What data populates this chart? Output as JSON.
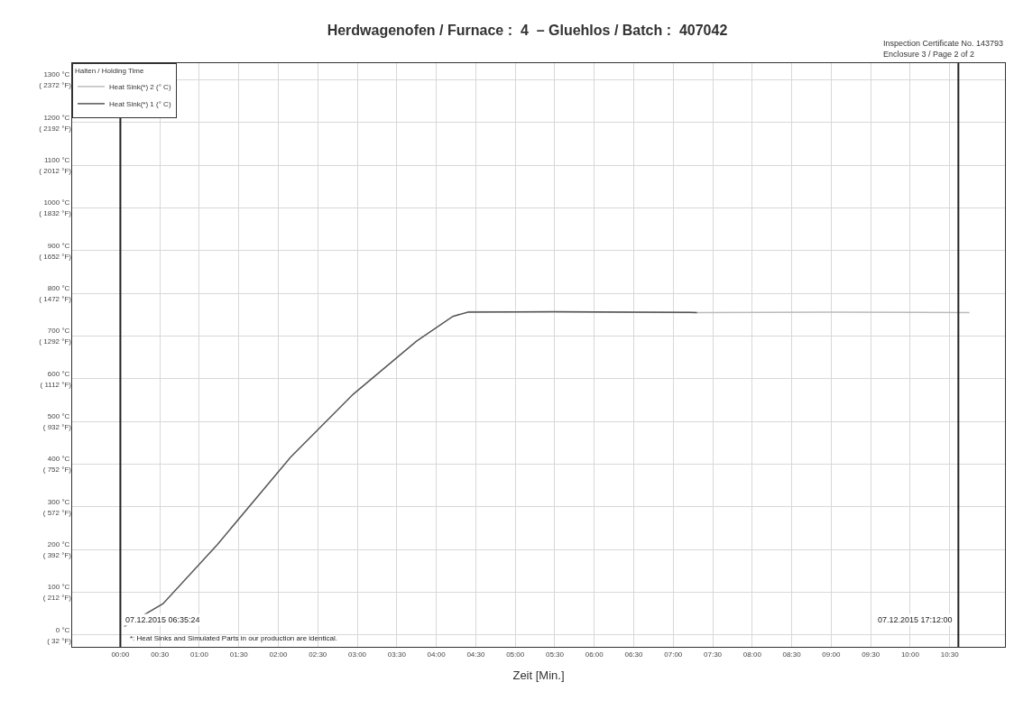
{
  "chart_data": {
    "type": "line",
    "title": "Herdwagenofen / Furnace :  4  – Gluehlos / Batch :  407042",
    "xlabel": "Zeit [Min.]",
    "legend_title": "Halten / Holding Time",
    "annotations": [
      "Inspection Certificate No. 143793\nEnclosure 3 / Page 2 of 2",
      "*: Heat Sinks and Simulated Parts in our production are identical.",
      {
        "text": "07.12.2015 06:35:24",
        "x": 0,
        "y": 20
      },
      {
        "text": "07.12.2015 17:12:00",
        "x": 10.61,
        "y": 20
      }
    ],
    "series": [
      {
        "name": "Heat Sink(*) 2 (° C)",
        "color": "#bbbbbb",
        "x": [
          4.4,
          7.3,
          9.0,
          10.75
        ],
        "values": [
          757,
          755,
          756,
          755
        ]
      },
      {
        "name": "Heat Sink(*) 1 (° C)",
        "color": "#555555",
        "x": [
          0.05,
          0.54,
          1.23,
          2.15,
          2.95,
          3.75,
          4.21,
          4.4,
          5.5,
          6.5,
          7.3
        ],
        "values": [
          20,
          73,
          212,
          415,
          564,
          688,
          746,
          756,
          757,
          756,
          755
        ]
      }
    ],
    "ref_lines": [
      {
        "axis": "x",
        "value": 0,
        "color": "#222222"
      },
      {
        "axis": "x",
        "value": 10.61,
        "color": "#222222"
      }
    ],
    "xlim": [
      -0.61,
      11.2
    ],
    "ylim": [
      -28,
      1339
    ],
    "y2lim": [
      -18.4,
      2442.2
    ],
    "xticks": [
      {
        "value": 0,
        "label": "00:00"
      },
      {
        "value": 0.5,
        "label": "00:30"
      },
      {
        "value": 1,
        "label": "01:00"
      },
      {
        "value": 1.5,
        "label": "01:30"
      },
      {
        "value": 2,
        "label": "02:00"
      },
      {
        "value": 2.5,
        "label": "02:30"
      },
      {
        "value": 3,
        "label": "03:00"
      },
      {
        "value": 3.5,
        "label": "03:30"
      },
      {
        "value": 4,
        "label": "04:00"
      },
      {
        "value": 4.5,
        "label": "04:30"
      },
      {
        "value": 5,
        "label": "05:00"
      },
      {
        "value": 5.5,
        "label": "05:30"
      },
      {
        "value": 6,
        "label": "06:00"
      },
      {
        "value": 6.5,
        "label": "06:30"
      },
      {
        "value": 7,
        "label": "07:00"
      },
      {
        "value": 7.5,
        "label": "07:30"
      },
      {
        "value": 8,
        "label": "08:00"
      },
      {
        "value": 8.5,
        "label": "08:30"
      },
      {
        "value": 9,
        "label": "09:00"
      },
      {
        "value": 9.5,
        "label": "09:30"
      },
      {
        "value": 10,
        "label": "10:00"
      },
      {
        "value": 10.5,
        "label": "10:30"
      }
    ],
    "yticks": [
      {
        "value": 0,
        "label": "0 °C"
      },
      {
        "value": 100,
        "label": "100 °C"
      },
      {
        "value": 200,
        "label": "200 °C"
      },
      {
        "value": 300,
        "label": "300 °C"
      },
      {
        "value": 400,
        "label": "400 °C"
      },
      {
        "value": 500,
        "label": "500 °C"
      },
      {
        "value": 600,
        "label": "600 °C"
      },
      {
        "value": 700,
        "label": "700 °C"
      },
      {
        "value": 800,
        "label": "800 °C"
      },
      {
        "value": 900,
        "label": "900 °C"
      },
      {
        "value": 1000,
        "label": "1000 °C"
      },
      {
        "value": 1100,
        "label": "1100 °C"
      },
      {
        "value": 1200,
        "label": "1200 °C"
      },
      {
        "value": 1300,
        "label": "1300 °C"
      }
    ],
    "y2ticks": [
      {
        "value": 32,
        "label": "( 32 °F)"
      },
      {
        "value": 212,
        "label": "( 212 °F)"
      },
      {
        "value": 392,
        "label": "( 392 °F)"
      },
      {
        "value": 572,
        "label": "( 572 °F)"
      },
      {
        "value": 752,
        "label": "( 752 °F)"
      },
      {
        "value": 932,
        "label": "( 932 °F)"
      },
      {
        "value": 1112,
        "label": "( 1112 °F)"
      },
      {
        "value": 1292,
        "label": "( 1292 °F)"
      },
      {
        "value": 1472,
        "label": "( 1472 °F)"
      },
      {
        "value": 1652,
        "label": "( 1652 °F)"
      },
      {
        "value": 1832,
        "label": "( 1832 °F)"
      },
      {
        "value": 2012,
        "label": "( 2012 °F)"
      },
      {
        "value": 2192,
        "label": "( 2192 °F)"
      },
      {
        "value": 2372,
        "label": "( 2372 °F)"
      }
    ],
    "grid": true,
    "legend": "top left",
    "marker": "none",
    "line_style": "solid"
  }
}
